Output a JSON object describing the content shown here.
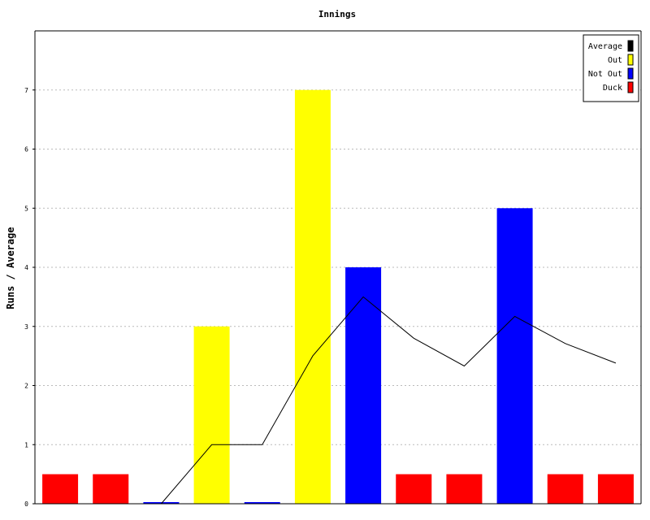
{
  "chart_data": {
    "type": "bar",
    "title": "Innings",
    "ylabel": "Runs / Average",
    "xlabel": "",
    "ylim": [
      0,
      8
    ],
    "yticks": [
      0,
      1,
      2,
      3,
      4,
      5,
      6,
      7
    ],
    "grid": true,
    "legend_position": "top-right",
    "legend": [
      {
        "label": "Average",
        "color": "#000000"
      },
      {
        "label": "Out",
        "color": "#ffff00"
      },
      {
        "label": "Not Out",
        "color": "#0000ff"
      },
      {
        "label": "Duck",
        "color": "#ff0000"
      }
    ],
    "innings": [
      {
        "status": "Duck",
        "runs": 0
      },
      {
        "status": "Duck",
        "runs": 0
      },
      {
        "status": "Not Out",
        "runs": 0
      },
      {
        "status": "Out",
        "runs": 3
      },
      {
        "status": "Not Out",
        "runs": 0
      },
      {
        "status": "Out",
        "runs": 7
      },
      {
        "status": "Not Out",
        "runs": 4
      },
      {
        "status": "Duck",
        "runs": 0
      },
      {
        "status": "Duck",
        "runs": 0
      },
      {
        "status": "Not Out",
        "runs": 5
      },
      {
        "status": "Duck",
        "runs": 0
      },
      {
        "status": "Duck",
        "runs": 0
      }
    ],
    "duck_marker_value": 0.5,
    "average": [
      null,
      null,
      0,
      1,
      1,
      2.5,
      3.5,
      2.8,
      2.33,
      3.17,
      2.71,
      2.38
    ],
    "colors": {
      "Out": "#ffff00",
      "Not Out": "#0000ff",
      "Duck": "#ff0000",
      "Average": "#000000",
      "grid": "#bbbbbb"
    }
  }
}
